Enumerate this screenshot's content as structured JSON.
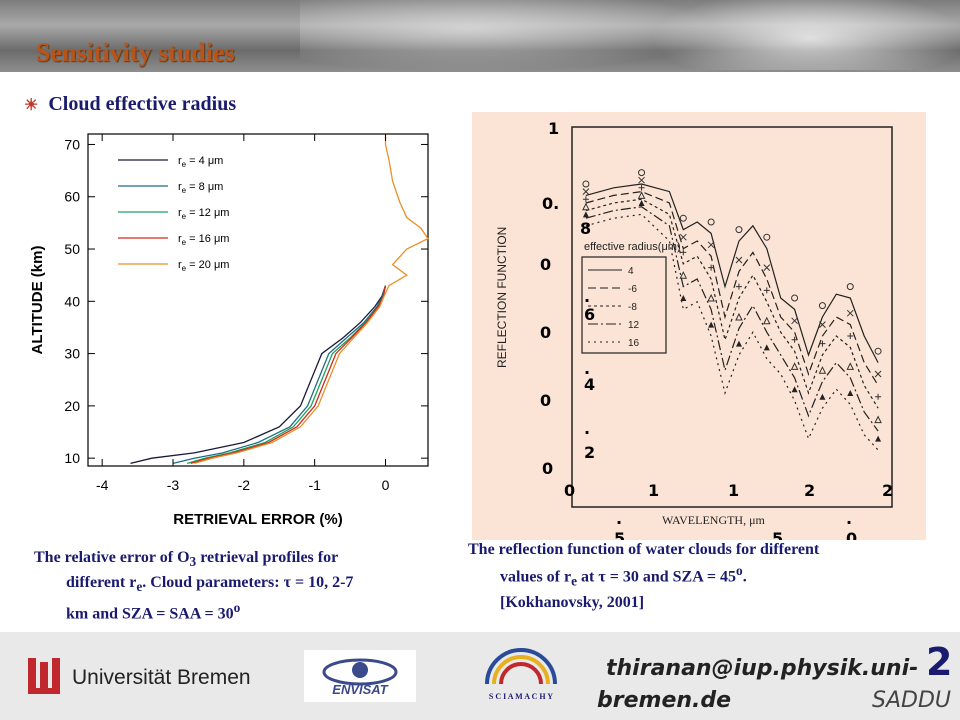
{
  "slide": {
    "title": "Sensitivity studies",
    "bullet": "Cloud effective radius"
  },
  "captions": {
    "left_line1": "The relative error of O",
    "left_sub1": "3",
    "left_line1b": " retrieval profiles for",
    "left_line2": "different r",
    "left_sub2": "e",
    "left_line2b": ". Cloud parameters:  τ = 10, 2-7",
    "left_line3": "km and SZA = SAA = 30",
    "left_sup3": "o",
    "right_line1": "The reflection function of water clouds for different",
    "right_line2": "values of r",
    "right_sub2": "e",
    "right_line2b": " at τ = 30 and SZA = 45",
    "right_sup2": "o",
    "right_line2c": ".",
    "right_line3": "[Kokhanovsky, 2001]"
  },
  "footer": {
    "email_line1": "thiranan@iup.physik.uni-",
    "email_line2": "bremen.de",
    "university": "Universität Bremen",
    "envisat": "ENVISAT",
    "sciamachy": "S C I A M A C H Y",
    "saddu": "SADDU",
    "page": "2"
  },
  "chart_data": [
    {
      "type": "line",
      "title": "",
      "xlabel": "RETRIEVAL ERROR (%)",
      "ylabel": "ALTITUDE (km)",
      "xlim": [
        -4.2,
        0.6
      ],
      "ylim": [
        8.5,
        72
      ],
      "x_ticks": [
        -4,
        -3,
        -2,
        -1,
        0
      ],
      "x_tick_labels": [
        "-4",
        "-3",
        "-2",
        "-1",
        "0"
      ],
      "y_ticks": [
        10,
        20,
        30,
        40,
        50,
        60,
        70
      ],
      "y_tick_labels": [
        "10",
        "20",
        "30",
        "40",
        "50",
        "60",
        "70"
      ],
      "legend_placement": "top-left",
      "series": [
        {
          "name": "r_e = 4 μm",
          "label": "r",
          "sub": "e",
          "rest": " = 4 μm",
          "color": "#1a1a3a",
          "points": [
            [
              -3.6,
              9
            ],
            [
              -3.3,
              10
            ],
            [
              -2.7,
              11
            ],
            [
              -2.0,
              13
            ],
            [
              -1.5,
              16
            ],
            [
              -1.2,
              20
            ],
            [
              -1.05,
              25
            ],
            [
              -0.9,
              30
            ],
            [
              -0.6,
              33
            ],
            [
              -0.35,
              36
            ],
            [
              -0.15,
              39
            ],
            [
              -0.05,
              41
            ],
            [
              0,
              43
            ]
          ]
        },
        {
          "name": "r_e = 8 μm",
          "label": "r",
          "sub": "e",
          "rest": " = 8 μm",
          "color": "#1f6f80",
          "points": [
            [
              -3.0,
              9
            ],
            [
              -2.7,
              10
            ],
            [
              -2.3,
              11
            ],
            [
              -1.8,
              13
            ],
            [
              -1.35,
              16
            ],
            [
              -1.1,
              20
            ],
            [
              -0.95,
              25
            ],
            [
              -0.8,
              30
            ],
            [
              -0.55,
              33
            ],
            [
              -0.3,
              36
            ],
            [
              -0.12,
              39
            ],
            [
              -0.04,
              41
            ],
            [
              0,
              43
            ]
          ]
        },
        {
          "name": "r_e = 12 μm",
          "label": "r",
          "sub": "e",
          "rest": " = 12 μm",
          "color": "#1fa060",
          "points": [
            [
              -2.8,
              9
            ],
            [
              -2.55,
              10
            ],
            [
              -2.2,
              11
            ],
            [
              -1.7,
              13
            ],
            [
              -1.3,
              16
            ],
            [
              -1.05,
              20
            ],
            [
              -0.9,
              25
            ],
            [
              -0.75,
              30
            ],
            [
              -0.5,
              33
            ],
            [
              -0.28,
              36
            ],
            [
              -0.1,
              39
            ],
            [
              -0.03,
              41
            ],
            [
              0,
              43
            ]
          ]
        },
        {
          "name": "r_e = 16 μm",
          "label": "r",
          "sub": "e",
          "rest": " = 16 μm",
          "color": "#d02a1a",
          "points": [
            [
              -2.75,
              9
            ],
            [
              -2.5,
              10
            ],
            [
              -2.15,
              11
            ],
            [
              -1.65,
              13
            ],
            [
              -1.25,
              16
            ],
            [
              -1.0,
              20
            ],
            [
              -0.85,
              25
            ],
            [
              -0.7,
              30
            ],
            [
              -0.48,
              33
            ],
            [
              -0.27,
              36
            ],
            [
              -0.1,
              39
            ],
            [
              -0.03,
              41
            ],
            [
              0,
              43
            ]
          ]
        },
        {
          "name": "r_e = 20 μm",
          "label": "r",
          "sub": "e",
          "rest": " = 20 μm",
          "color": "#e8902a",
          "points": [
            [
              -2.7,
              9
            ],
            [
              -2.45,
              10
            ],
            [
              -2.1,
              11
            ],
            [
              -1.6,
              13
            ],
            [
              -1.2,
              16
            ],
            [
              -0.95,
              20
            ],
            [
              -0.8,
              25
            ],
            [
              -0.65,
              30
            ],
            [
              -0.45,
              33
            ],
            [
              -0.25,
              36
            ],
            [
              -0.08,
              39
            ],
            [
              -0.02,
              41
            ],
            [
              0.05,
              43
            ],
            [
              0.3,
              45
            ],
            [
              0.1,
              47
            ],
            [
              0.3,
              50
            ],
            [
              0.6,
              52
            ],
            [
              0.5,
              54
            ],
            [
              0.3,
              56
            ],
            [
              0.2,
              59
            ],
            [
              0.1,
              63
            ],
            [
              0.05,
              67
            ],
            [
              0,
              70
            ],
            [
              0,
              72
            ]
          ]
        }
      ]
    },
    {
      "type": "line",
      "title": "",
      "xlabel": "WAVELENGTH, μm",
      "ylabel": "REFLECTION FUNCTION",
      "legend_title": "effective radius(μm)",
      "legend_entries": [
        "4",
        "-6",
        "-8",
        "12",
        "16"
      ],
      "overlay_y_labels": [
        "1",
        "0.",
        "0",
        "0",
        "0",
        "0"
      ],
      "overlay_y_fragments": [
        "8",
        ".",
        "6",
        ".",
        "4",
        ".",
        "2"
      ],
      "overlay_x_labels": [
        "0",
        "1",
        "1",
        "2",
        "2"
      ],
      "overlay_x_fragments": [
        ".",
        "5",
        "5",
        ".",
        "0",
        ".",
        "5"
      ],
      "x": [
        0.4,
        0.6,
        0.8,
        1.0,
        1.1,
        1.2,
        1.3,
        1.4,
        1.5,
        1.6,
        1.7,
        1.8,
        1.9,
        2.0,
        2.1,
        2.2,
        2.3,
        2.4,
        2.5
      ],
      "series": [
        {
          "name": "4",
          "values": [
            0.82,
            0.84,
            0.85,
            0.83,
            0.73,
            0.75,
            0.72,
            0.58,
            0.7,
            0.74,
            0.68,
            0.55,
            0.52,
            0.4,
            0.5,
            0.56,
            0.55,
            0.45,
            0.38
          ]
        },
        {
          "name": "-6",
          "values": [
            0.8,
            0.82,
            0.83,
            0.8,
            0.68,
            0.7,
            0.66,
            0.5,
            0.62,
            0.67,
            0.6,
            0.5,
            0.46,
            0.35,
            0.45,
            0.5,
            0.48,
            0.38,
            0.32
          ]
        },
        {
          "name": "-8",
          "values": [
            0.78,
            0.8,
            0.81,
            0.77,
            0.64,
            0.66,
            0.6,
            0.44,
            0.55,
            0.61,
            0.54,
            0.46,
            0.41,
            0.3,
            0.4,
            0.45,
            0.42,
            0.32,
            0.26
          ]
        },
        {
          "name": "12",
          "values": [
            0.76,
            0.78,
            0.79,
            0.74,
            0.58,
            0.6,
            0.52,
            0.36,
            0.47,
            0.53,
            0.46,
            0.4,
            0.34,
            0.24,
            0.33,
            0.38,
            0.34,
            0.25,
            0.2
          ]
        },
        {
          "name": "16",
          "values": [
            0.74,
            0.76,
            0.77,
            0.7,
            0.52,
            0.54,
            0.45,
            0.3,
            0.4,
            0.46,
            0.39,
            0.35,
            0.28,
            0.18,
            0.26,
            0.31,
            0.27,
            0.19,
            0.15
          ]
        }
      ]
    }
  ],
  "colors": {
    "title": "#b8541a",
    "text_blue": "#1a1a6e",
    "scan_bg": "#fbe4d5"
  }
}
